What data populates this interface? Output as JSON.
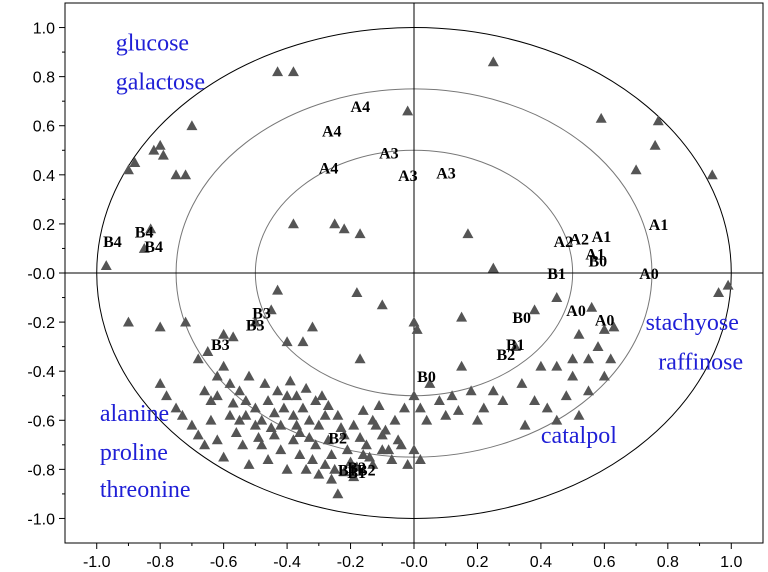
{
  "chart_data": {
    "type": "scatter",
    "title": "",
    "xlabel": "",
    "ylabel": "",
    "xlim": [
      -1.1,
      1.1
    ],
    "ylim": [
      -1.1,
      1.1
    ],
    "x_ticks": [
      "-1.0",
      "-0.8",
      "-0.6",
      "-0.4",
      "-0.2",
      "-0.0",
      "0.2",
      "0.4",
      "0.6",
      "0.8",
      "1.0"
    ],
    "y_ticks": [
      "1.0",
      "0.8",
      "0.6",
      "0.4",
      "0.2",
      "-0.0",
      "-0.2",
      "-0.4",
      "-0.6",
      "-0.8",
      "-1.0"
    ],
    "circle_radii": [
      0.5,
      0.75,
      1.0
    ],
    "marker": "triangle",
    "marker_color": "#555555",
    "text_color": "#1f1fd6",
    "grid": false,
    "points": [
      [
        -0.97,
        0.03
      ],
      [
        -0.9,
        0.42
      ],
      [
        -0.88,
        0.45
      ],
      [
        -0.85,
        0.1
      ],
      [
        -0.82,
        0.5
      ],
      [
        -0.8,
        0.52
      ],
      [
        -0.79,
        0.48
      ],
      [
        -0.83,
        0.18
      ],
      [
        -0.75,
        0.4
      ],
      [
        -0.72,
        0.4
      ],
      [
        -0.7,
        0.6
      ],
      [
        -0.9,
        -0.2
      ],
      [
        -0.8,
        -0.22
      ],
      [
        -0.72,
        -0.2
      ],
      [
        -0.6,
        -0.25
      ],
      [
        -0.57,
        -0.26
      ],
      [
        -0.5,
        -0.2
      ],
      [
        -0.45,
        -0.15
      ],
      [
        -0.43,
        -0.07
      ],
      [
        -0.4,
        -0.28
      ],
      [
        -0.35,
        -0.28
      ],
      [
        -0.32,
        -0.22
      ],
      [
        -0.43,
        0.82
      ],
      [
        -0.38,
        0.82
      ],
      [
        -0.38,
        0.2
      ],
      [
        -0.25,
        0.2
      ],
      [
        -0.22,
        0.18
      ],
      [
        -0.18,
        -0.08
      ],
      [
        -0.17,
        -0.35
      ],
      [
        -0.1,
        -0.13
      ],
      [
        -0.02,
        0.66
      ],
      [
        0.0,
        -0.2
      ],
      [
        0.01,
        -0.23
      ],
      [
        0.17,
        0.16
      ],
      [
        -0.17,
        0.16
      ],
      [
        0.25,
        0.86
      ],
      [
        0.25,
        0.02
      ],
      [
        0.15,
        -0.18
      ],
      [
        0.15,
        -0.38
      ],
      [
        0.25,
        -0.48
      ],
      [
        0.35,
        -0.62
      ],
      [
        0.38,
        -0.52
      ],
      [
        0.4,
        -0.38
      ],
      [
        0.45,
        -0.38
      ],
      [
        0.5,
        -0.42
      ],
      [
        0.55,
        -0.35
      ],
      [
        0.6,
        -0.42
      ],
      [
        0.63,
        -0.22
      ],
      [
        0.56,
        -0.14
      ],
      [
        0.59,
        0.63
      ],
      [
        0.7,
        0.42
      ],
      [
        0.76,
        0.52
      ],
      [
        0.77,
        0.62
      ],
      [
        0.94,
        0.4
      ],
      [
        0.96,
        -0.08
      ],
      [
        0.99,
        -0.05
      ],
      [
        0.45,
        -0.1
      ],
      [
        0.52,
        -0.25
      ],
      [
        0.6,
        -0.23
      ],
      [
        0.45,
        -0.6
      ],
      [
        0.55,
        -0.48
      ],
      [
        0.5,
        -0.35
      ],
      [
        0.32,
        -0.3
      ],
      [
        0.38,
        -0.15
      ],
      [
        -0.6,
        -0.38
      ],
      [
        -0.65,
        -0.32
      ],
      [
        -0.68,
        -0.35
      ],
      [
        -0.62,
        -0.42
      ],
      [
        -0.58,
        -0.45
      ],
      [
        -0.55,
        -0.48
      ],
      [
        -0.52,
        -0.42
      ],
      [
        -0.5,
        -0.55
      ],
      [
        -0.48,
        -0.6
      ],
      [
        -0.46,
        -0.52
      ],
      [
        -0.44,
        -0.57
      ],
      [
        -0.42,
        -0.62
      ],
      [
        -0.4,
        -0.5
      ],
      [
        -0.38,
        -0.58
      ],
      [
        -0.36,
        -0.65
      ],
      [
        -0.35,
        -0.55
      ],
      [
        -0.33,
        -0.6
      ],
      [
        -0.31,
        -0.7
      ],
      [
        -0.3,
        -0.62
      ],
      [
        -0.28,
        -0.58
      ],
      [
        -0.27,
        -0.68
      ],
      [
        -0.26,
        -0.74
      ],
      [
        -0.25,
        -0.8
      ],
      [
        -0.24,
        -0.9
      ],
      [
        -0.23,
        -0.63
      ],
      [
        -0.21,
        -0.72
      ],
      [
        -0.2,
        -0.77
      ],
      [
        -0.19,
        -0.83
      ],
      [
        -0.17,
        -0.67
      ],
      [
        -0.15,
        -0.7
      ],
      [
        -0.14,
        -0.75
      ],
      [
        -0.12,
        -0.62
      ],
      [
        -0.1,
        -0.66
      ],
      [
        -0.08,
        -0.72
      ],
      [
        -0.06,
        -0.6
      ],
      [
        -0.05,
        -0.68
      ],
      [
        -0.03,
        -0.55
      ],
      [
        -0.02,
        -0.78
      ],
      [
        0.0,
        -0.5
      ],
      [
        0.02,
        -0.55
      ],
      [
        0.04,
        -0.6
      ],
      [
        0.05,
        -0.45
      ],
      [
        0.08,
        -0.52
      ],
      [
        0.1,
        -0.58
      ],
      [
        0.12,
        -0.5
      ],
      [
        0.14,
        -0.56
      ],
      [
        0.18,
        -0.48
      ],
      [
        0.2,
        -0.6
      ],
      [
        0.22,
        -0.55
      ],
      [
        -0.8,
        -0.45
      ],
      [
        -0.78,
        -0.5
      ],
      [
        -0.75,
        -0.55
      ],
      [
        -0.73,
        -0.58
      ],
      [
        -0.7,
        -0.62
      ],
      [
        -0.68,
        -0.66
      ],
      [
        -0.66,
        -0.7
      ],
      [
        -0.64,
        -0.6
      ],
      [
        -0.62,
        -0.68
      ],
      [
        -0.6,
        -0.75
      ],
      [
        -0.58,
        -0.58
      ],
      [
        -0.56,
        -0.65
      ],
      [
        -0.54,
        -0.7
      ],
      [
        -0.52,
        -0.78
      ],
      [
        -0.5,
        -0.62
      ],
      [
        -0.48,
        -0.7
      ],
      [
        -0.46,
        -0.76
      ],
      [
        -0.44,
        -0.66
      ],
      [
        -0.42,
        -0.72
      ],
      [
        -0.4,
        -0.8
      ],
      [
        -0.38,
        -0.68
      ],
      [
        -0.36,
        -0.74
      ],
      [
        -0.34,
        -0.8
      ],
      [
        -0.32,
        -0.76
      ],
      [
        -0.3,
        -0.82
      ],
      [
        -0.28,
        -0.78
      ],
      [
        -0.26,
        -0.84
      ],
      [
        -0.22,
        -0.81
      ],
      [
        -0.18,
        -0.79
      ],
      [
        -0.16,
        -0.74
      ],
      [
        -0.13,
        -0.78
      ],
      [
        -0.1,
        -0.72
      ],
      [
        -0.07,
        -0.76
      ],
      [
        -0.04,
        -0.7
      ],
      [
        0.0,
        -0.72
      ],
      [
        0.02,
        -0.76
      ],
      [
        -0.66,
        -0.48
      ],
      [
        -0.64,
        -0.52
      ],
      [
        -0.62,
        -0.5
      ],
      [
        -0.57,
        -0.53
      ],
      [
        -0.53,
        -0.58
      ],
      [
        -0.47,
        -0.45
      ],
      [
        -0.43,
        -0.48
      ],
      [
        -0.39,
        -0.44
      ],
      [
        -0.37,
        -0.5
      ],
      [
        -0.34,
        -0.47
      ],
      [
        -0.31,
        -0.52
      ],
      [
        -0.29,
        -0.5
      ],
      [
        -0.27,
        -0.54
      ],
      [
        -0.24,
        -0.58
      ],
      [
        -0.22,
        -0.66
      ],
      [
        -0.19,
        -0.62
      ],
      [
        -0.16,
        -0.56
      ],
      [
        -0.13,
        -0.6
      ],
      [
        -0.11,
        -0.54
      ],
      [
        -0.09,
        -0.64
      ],
      [
        -0.55,
        -0.6
      ],
      [
        -0.53,
        -0.52
      ],
      [
        -0.49,
        -0.67
      ],
      [
        -0.45,
        -0.63
      ],
      [
        -0.41,
        -0.55
      ],
      [
        -0.37,
        -0.62
      ],
      [
        -0.33,
        -0.67
      ],
      [
        0.52,
        -0.58
      ],
      [
        0.48,
        -0.5
      ],
      [
        0.42,
        -0.55
      ],
      [
        0.58,
        -0.3
      ],
      [
        0.62,
        -0.35
      ],
      [
        0.28,
        -0.52
      ],
      [
        0.34,
        -0.45
      ]
    ],
    "sample_labels": [
      {
        "text": "A4",
        "x": -0.2,
        "y": 0.68
      },
      {
        "text": "A4",
        "x": -0.29,
        "y": 0.58
      },
      {
        "text": "A4",
        "x": -0.3,
        "y": 0.43
      },
      {
        "text": "A3",
        "x": -0.11,
        "y": 0.49
      },
      {
        "text": "A3",
        "x": -0.05,
        "y": 0.4
      },
      {
        "text": "A3",
        "x": 0.07,
        "y": 0.41
      },
      {
        "text": "A2",
        "x": 0.44,
        "y": 0.13
      },
      {
        "text": "A2",
        "x": 0.49,
        "y": 0.14
      },
      {
        "text": "A1",
        "x": 0.56,
        "y": 0.15
      },
      {
        "text": "A1",
        "x": 0.54,
        "y": 0.08
      },
      {
        "text": "A1",
        "x": 0.74,
        "y": 0.2
      },
      {
        "text": "B0",
        "x": 0.55,
        "y": 0.05
      },
      {
        "text": "B1",
        "x": 0.42,
        "y": 0.0
      },
      {
        "text": "A0",
        "x": 0.71,
        "y": 0.0
      },
      {
        "text": "A0",
        "x": 0.48,
        "y": -0.15
      },
      {
        "text": "A0",
        "x": 0.57,
        "y": -0.19
      },
      {
        "text": "B0",
        "x": 0.31,
        "y": -0.18
      },
      {
        "text": "B1",
        "x": 0.29,
        "y": -0.29
      },
      {
        "text": "B2",
        "x": 0.26,
        "y": -0.33
      },
      {
        "text": "B0",
        "x": 0.01,
        "y": -0.42
      },
      {
        "text": "B4",
        "x": -0.98,
        "y": 0.13
      },
      {
        "text": "B4",
        "x": -0.88,
        "y": 0.17
      },
      {
        "text": "B4",
        "x": -0.85,
        "y": 0.11
      },
      {
        "text": "B3",
        "x": -0.51,
        "y": -0.16
      },
      {
        "text": "B3",
        "x": -0.53,
        "y": -0.21
      },
      {
        "text": "B3",
        "x": -0.64,
        "y": -0.29
      },
      {
        "text": "B2",
        "x": -0.27,
        "y": -0.67
      },
      {
        "text": "B2",
        "x": -0.21,
        "y": -0.79
      },
      {
        "text": "B1",
        "x": -0.24,
        "y": -0.8
      },
      {
        "text": "B1",
        "x": -0.21,
        "y": -0.81
      },
      {
        "text": "B2",
        "x": -0.18,
        "y": -0.8
      }
    ],
    "variable_labels": [
      {
        "text": "glucose",
        "x": -0.94,
        "y": 0.94
      },
      {
        "text": "galactose",
        "x": -0.94,
        "y": 0.78
      },
      {
        "text": "stachyose",
        "x": 0.73,
        "y": -0.2
      },
      {
        "text": "raffinose",
        "x": 0.77,
        "y": -0.36
      },
      {
        "text": "catalpol",
        "x": 0.4,
        "y": -0.66
      },
      {
        "text": "alanine",
        "x": -0.99,
        "y": -0.57
      },
      {
        "text": "proline",
        "x": -0.99,
        "y": -0.73
      },
      {
        "text": "threonine",
        "x": -0.99,
        "y": -0.88
      }
    ]
  }
}
